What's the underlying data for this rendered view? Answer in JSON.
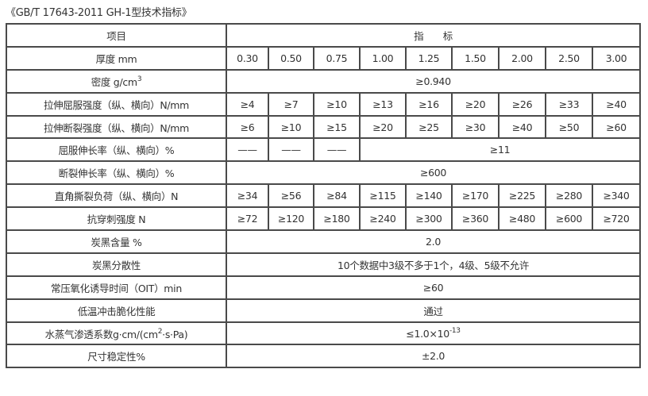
{
  "title": "《GB/T 17643-2011 GH-1型技术指标》",
  "header": {
    "item": "项目",
    "indicator": "指　　标"
  },
  "thickness": {
    "label": "厚度 mm",
    "values": [
      "0.30",
      "0.50",
      "0.75",
      "1.00",
      "1.25",
      "1.50",
      "2.00",
      "2.50",
      "3.00"
    ]
  },
  "density": {
    "label": "密度 g/cm",
    "label_sup": "3",
    "value": "≥0.940"
  },
  "yield_strength": {
    "label": "拉伸屈服强度（纵、横向）N/mm",
    "values": [
      "≥4",
      "≥7",
      "≥10",
      "≥13",
      "≥16",
      "≥20",
      "≥26",
      "≥33",
      "≥40"
    ]
  },
  "break_strength": {
    "label": "拉伸断裂强度（纵、横向）N/mm",
    "values": [
      "≥6",
      "≥10",
      "≥15",
      "≥20",
      "≥25",
      "≥30",
      "≥40",
      "≥50",
      "≥60"
    ]
  },
  "yield_elongation": {
    "label": "屈服伸长率（纵、横向）%",
    "dashes": [
      "——",
      "——",
      "——"
    ],
    "value": "≥11"
  },
  "break_elongation": {
    "label": "断裂伸长率（纵、横向）%",
    "value": "≥600"
  },
  "tear_load": {
    "label": "直角撕裂负荷（纵、横向）N",
    "values": [
      "≥34",
      "≥56",
      "≥84",
      "≥115",
      "≥140",
      "≥170",
      "≥225",
      "≥280",
      "≥340"
    ]
  },
  "puncture": {
    "label": "抗穿刺强度 N",
    "values": [
      "≥72",
      "≥120",
      "≥180",
      "≥240",
      "≥300",
      "≥360",
      "≥480",
      "≥600",
      "≥720"
    ]
  },
  "carbon_content": {
    "label": "炭黑含量 %",
    "value": "2.0"
  },
  "carbon_dispersion": {
    "label": "炭黑分散性",
    "value": "10个数据中3级不多于1个，4级、5级不允许"
  },
  "oit": {
    "label": "常压氧化诱导时间（OIT）min",
    "value": "≥60"
  },
  "low_temp": {
    "label": "低温冲击脆化性能",
    "value": "通过"
  },
  "vapor": {
    "label": "水蒸气渗透系数g·cm/(cm",
    "label_sup": "2",
    "label_tail": "·s·Pa)",
    "value": "≤1.0×10",
    "value_sup": "-13"
  },
  "dimension": {
    "label": "尺寸稳定性%",
    "value": "±2.0"
  }
}
